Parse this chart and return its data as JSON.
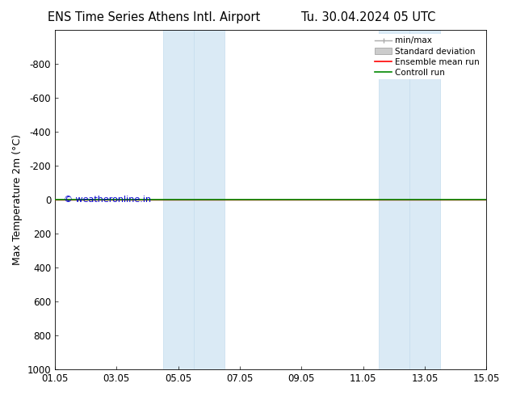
{
  "title_left": "ENS Time Series Athens Intl. Airport",
  "title_right": "Tu. 30.04.2024 05 UTC",
  "ylabel": "Max Temperature 2m (°C)",
  "ylim": [
    -1000,
    1000
  ],
  "yticks": [
    -800,
    -600,
    -400,
    -200,
    0,
    200,
    400,
    600,
    800,
    1000
  ],
  "xtick_labels": [
    "01.05",
    "03.05",
    "05.05",
    "07.05",
    "09.05",
    "11.05",
    "13.05",
    "15.05"
  ],
  "xtick_positions": [
    0,
    2,
    4,
    6,
    8,
    10,
    12,
    14
  ],
  "x_start": 0,
  "x_end": 14,
  "blue_bands": [
    [
      3.5,
      4.5
    ],
    [
      4.5,
      5.5
    ],
    [
      10.5,
      11.5
    ],
    [
      11.5,
      12.5
    ]
  ],
  "blue_band_color": "#daeaf5",
  "blue_band_edge_color": "#c5dcee",
  "green_line_y": 0,
  "red_line_y": 0,
  "watermark": "© weatheronline.in",
  "watermark_color": "#0000cc",
  "legend_labels": [
    "min/max",
    "Standard deviation",
    "Ensemble mean run",
    "Controll run"
  ],
  "legend_colors": [
    "#aaaaaa",
    "#cccccc",
    "#ff0000",
    "#008800"
  ],
  "background_color": "#ffffff",
  "plot_bg_color": "#ffffff",
  "title_fontsize": 10.5,
  "axis_fontsize": 9,
  "tick_fontsize": 8.5
}
